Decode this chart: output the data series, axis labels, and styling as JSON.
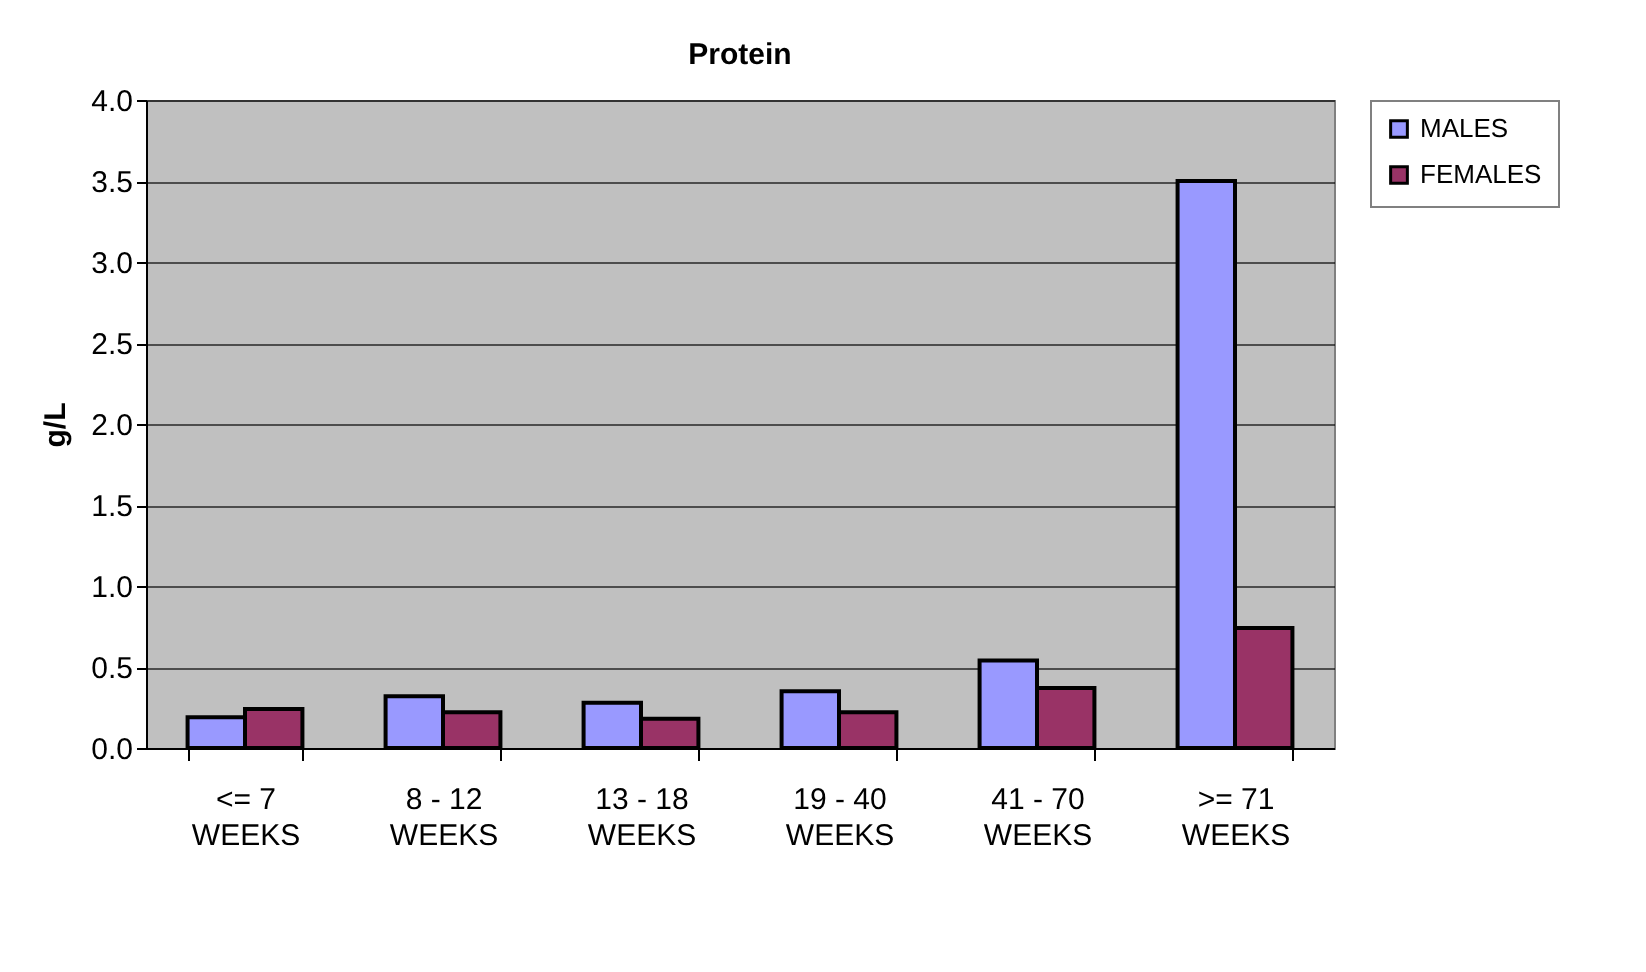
{
  "chart_data": {
    "type": "bar",
    "title": "Protein",
    "ylabel": "g/L",
    "categories": [
      "<= 7 WEEKS",
      "8 - 12 WEEKS",
      "13 - 18 WEEKS",
      "19 - 40 WEEKS",
      "41 - 70 WEEKS",
      ">= 71 WEEKS"
    ],
    "series": [
      {
        "name": "MALES",
        "color": "#9999ff",
        "values": [
          0.19,
          0.32,
          0.28,
          0.35,
          0.54,
          3.5
        ]
      },
      {
        "name": "FEMALES",
        "color": "#993366",
        "values": [
          0.24,
          0.22,
          0.18,
          0.22,
          0.37,
          0.74
        ]
      }
    ],
    "ylim": [
      0,
      4
    ],
    "yticks": [
      {
        "value": 0,
        "label": "0.0"
      },
      0.5,
      {
        "value": 1,
        "label": "1.0"
      },
      1.5,
      {
        "value": 2,
        "label": "2.0"
      },
      2.5,
      {
        "value": 3,
        "label": "3.0"
      },
      3.5,
      {
        "value": 4,
        "label": "4.0"
      }
    ],
    "grid": "y",
    "legend": "right"
  }
}
